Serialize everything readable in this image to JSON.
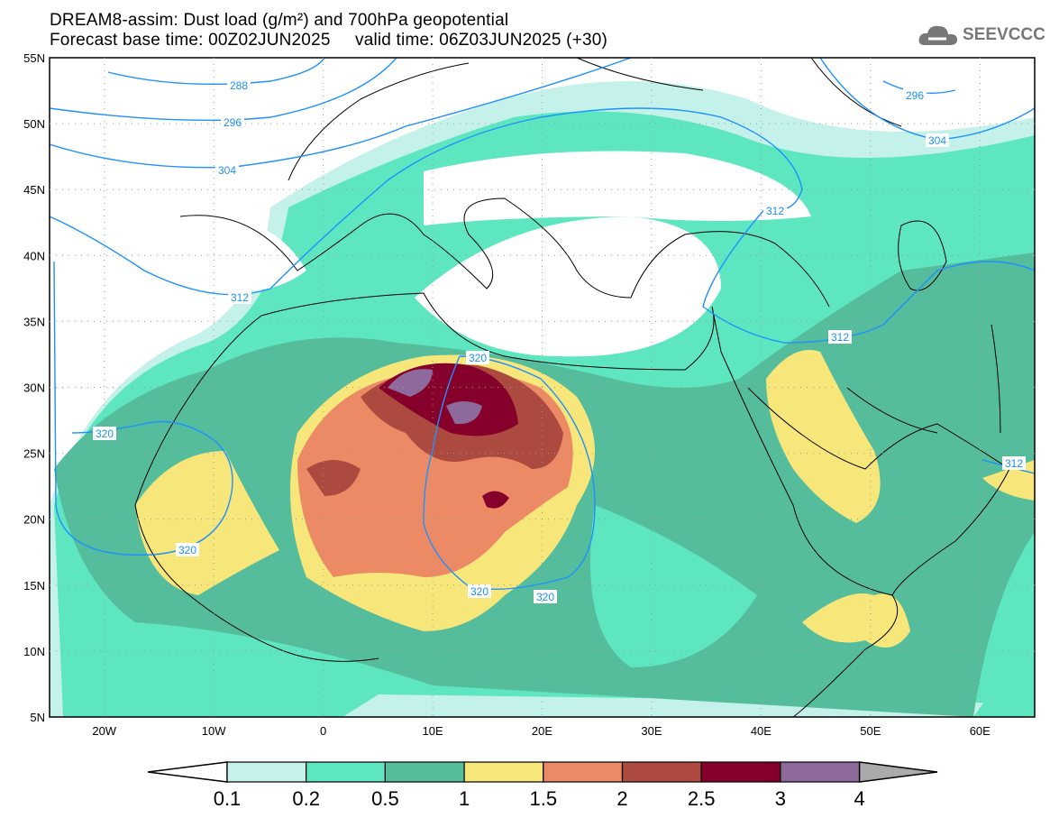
{
  "header": {
    "title": "DREAM8-assim: Dust load (g/m²) and 700hPa geopotential",
    "subtitle": "Forecast base time: 00Z02JUN2025     valid time: 06Z03JUN2025 (+30)",
    "logo": "SEEVCCC"
  },
  "map": {
    "lat_labels": [
      "55N",
      "50N",
      "45N",
      "40N",
      "35N",
      "30N",
      "25N",
      "20N",
      "15N",
      "10N",
      "5N"
    ],
    "lon_labels": [
      "20W",
      "10W",
      "0",
      "10E",
      "20E",
      "30E",
      "40E",
      "50E",
      "60E"
    ],
    "contour_labels": [
      "288",
      "296",
      "304",
      "312",
      "320",
      "320",
      "320",
      "320",
      "320",
      "312",
      "312",
      "312",
      "304",
      "296"
    ],
    "contour_color": "#1e90ff"
  },
  "colorbar": {
    "labels": [
      "0.1",
      "0.2",
      "0.5",
      "1",
      "1.5",
      "2",
      "2.5",
      "3",
      "4"
    ],
    "colors": [
      "#c4f2ea",
      "#5ee6c0",
      "#55bd9c",
      "#f7e77a",
      "#ec8a66",
      "#ac4a40",
      "#85002a",
      "#8d6a9b"
    ],
    "under_color": "#ffffff",
    "over_color": "#aaaaaa"
  }
}
